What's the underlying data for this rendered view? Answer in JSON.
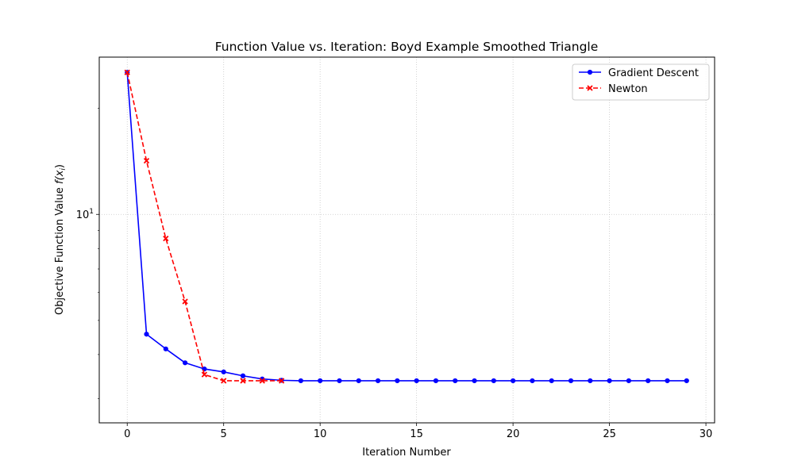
{
  "chart_data": {
    "type": "line",
    "title": "Function Value vs. Iteration: Boyd Example Smoothed Triangle",
    "xlabel": "Iteration Number",
    "ylabel_main": "Objective Function Value ",
    "ylabel_math": "f(x",
    "ylabel_sub": "i",
    "ylabel_close": ")",
    "xlim": [
      -1.45,
      30.45
    ],
    "ylim": [
      2.5593,
      27.96
    ],
    "yscale": "log",
    "grid": true,
    "legend_position": "top-right",
    "x_ticks": [
      0,
      5,
      10,
      15,
      20,
      25,
      30
    ],
    "y_major_ticks": [
      {
        "value": 10,
        "base": "10",
        "exp": "1"
      }
    ],
    "series": [
      {
        "name": "Gradient Descent",
        "color": "#0000ff",
        "linestyle": "solid",
        "marker": "dot",
        "x": [
          0,
          1,
          2,
          3,
          4,
          5,
          6,
          7,
          8,
          9,
          10,
          11,
          12,
          13,
          14,
          15,
          16,
          17,
          18,
          19,
          20,
          21,
          22,
          23,
          24,
          25,
          26,
          27,
          28,
          29
        ],
        "y": [
          25.3,
          4.57,
          4.15,
          3.79,
          3.64,
          3.57,
          3.48,
          3.41,
          3.38,
          3.37,
          3.37,
          3.37,
          3.37,
          3.37,
          3.37,
          3.37,
          3.37,
          3.37,
          3.37,
          3.37,
          3.37,
          3.37,
          3.37,
          3.37,
          3.37,
          3.37,
          3.37,
          3.37,
          3.37,
          3.37
        ]
      },
      {
        "name": "Newton",
        "color": "#ff0000",
        "linestyle": "dashed",
        "marker": "x",
        "x": [
          0,
          1,
          2,
          3,
          4,
          5,
          6,
          7,
          8
        ],
        "y": [
          25.3,
          14.2,
          8.54,
          5.66,
          3.51,
          3.37,
          3.37,
          3.37,
          3.37
        ]
      }
    ]
  }
}
